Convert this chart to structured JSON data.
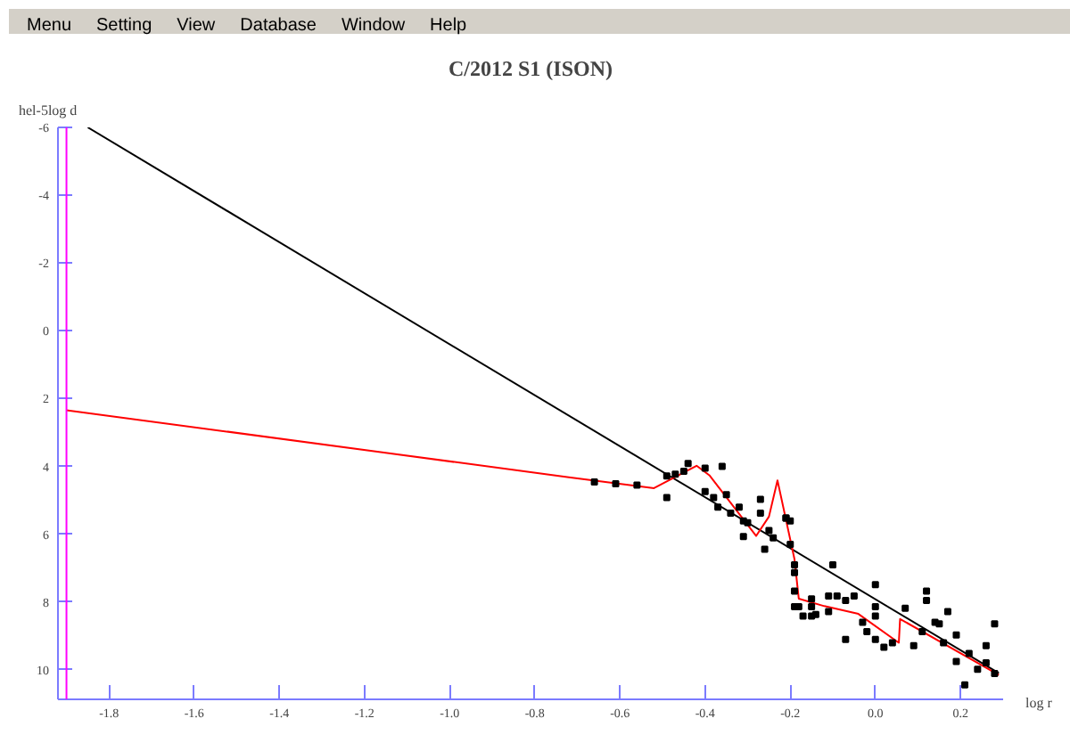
{
  "chart_data": {
    "type": "scatter",
    "title": "C/2012 S1 (ISON)",
    "xlabel": "log r",
    "ylabel": "hel-5log d",
    "annotations": [
      "Menu",
      "Setting",
      "View",
      "Database",
      "Window",
      "Help"
    ],
    "xlim": [
      -1.92,
      0.3
    ],
    "ylim": [
      10.87,
      -6
    ],
    "xticks": [
      -1.8,
      -1.6,
      -1.4,
      -1.2,
      {
        "value": -1,
        "label": "-1.0"
      },
      -0.8,
      -0.6,
      -0.4,
      -0.2,
      {
        "value": 0,
        "label": "0.0"
      },
      0.2
    ],
    "yticks": [
      -6,
      -4,
      -2,
      0,
      2,
      4,
      6,
      8,
      10
    ],
    "grid": false,
    "ref_lines": [
      {
        "axis": "x",
        "value": -1.9,
        "color": "#ff00ff"
      }
    ],
    "series": [
      {
        "type": "line",
        "color": "#000000",
        "x": [
          -1.85,
          0.29
        ],
        "values": [
          -6,
          10.1
        ]
      },
      {
        "type": "line",
        "color": "#ff0000",
        "x": [
          -1.9,
          -0.72,
          -0.52,
          -0.42,
          -0.39,
          -0.28,
          -0.25,
          -0.23,
          -0.19,
          -0.18,
          -0.12,
          -0.04,
          0.055,
          0.058,
          0.29
        ],
        "values": [
          2.34,
          4.32,
          4.64,
          3.98,
          4.26,
          6.05,
          5.48,
          4.41,
          6.74,
          7.9,
          8.12,
          8.35,
          9.2,
          8.5,
          10.15
        ]
      },
      {
        "color": "#000000",
        "marker": "square",
        "x": [
          -0.66,
          -0.61,
          -0.56,
          -0.49,
          -0.47,
          -0.45,
          -0.44,
          -0.49,
          -0.4,
          -0.36,
          -0.4,
          -0.38,
          -0.35,
          -0.37,
          -0.34,
          -0.32,
          -0.31,
          -0.3,
          -0.31,
          -0.27,
          -0.27,
          -0.25,
          -0.26,
          -0.24,
          -0.21,
          -0.2,
          -0.2,
          -0.19,
          -0.1,
          -0.19,
          -0.18,
          -0.15,
          -0.17,
          -0.11,
          -0.14,
          -0.21,
          -0.19,
          -0.19,
          -0.15,
          -0.15,
          -0.11,
          -0.09,
          -0.07,
          -0.07,
          -0.05,
          -0.03,
          -0.02,
          0.0,
          0.0,
          0.0,
          0.0,
          0.02,
          0.04,
          0.07,
          0.09,
          0.12,
          0.12,
          0.11,
          0.14,
          0.15,
          0.17,
          0.16,
          0.19,
          0.19,
          0.22,
          0.21,
          0.24,
          0.26,
          0.26,
          0.28,
          0.28
        ],
        "values": [
          4.46,
          4.51,
          4.55,
          4.28,
          4.23,
          4.14,
          3.91,
          4.92,
          4.05,
          4.0,
          4.74,
          4.92,
          4.83,
          5.2,
          5.38,
          5.2,
          5.61,
          5.66,
          6.07,
          4.97,
          5.38,
          5.89,
          6.44,
          6.11,
          5.52,
          5.61,
          6.3,
          6.9,
          6.9,
          7.68,
          8.14,
          8.14,
          8.41,
          7.82,
          8.37,
          5.52,
          7.13,
          8.14,
          7.91,
          8.41,
          8.28,
          7.82,
          7.95,
          9.1,
          7.82,
          8.6,
          8.87,
          7.49,
          8.14,
          8.41,
          9.1,
          9.33,
          9.2,
          8.18,
          9.29,
          7.68,
          7.95,
          8.87,
          8.6,
          8.64,
          8.28,
          9.2,
          8.97,
          9.75,
          9.52,
          10.44,
          9.98,
          9.29,
          9.79,
          8.64,
          10.11
        ]
      }
    ]
  }
}
